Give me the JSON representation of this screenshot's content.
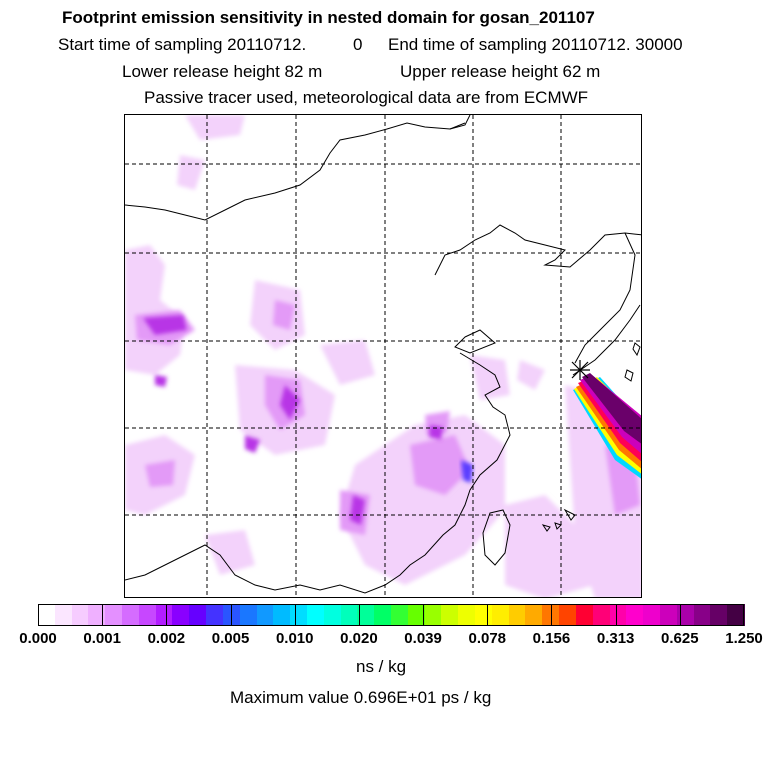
{
  "header": {
    "title": "Footprint emission sensitivity in nested domain for gosan_201107",
    "line2_start": "Start time of sampling 20110712.",
    "line2_start_val": "0",
    "line2_end": "End time of sampling 20110712. 30000",
    "line3_lower": "Lower release height   82 m",
    "line3_upper": "Upper release height   62 m",
    "line4": "Passive tracer used, meteorological data are from ECMWF"
  },
  "map": {
    "gridlines": "dashed",
    "release_marker": "star-icon"
  },
  "colorbar": {
    "labels": [
      "0.000",
      "0.001",
      "0.002",
      "0.005",
      "0.010",
      "0.020",
      "0.039",
      "0.078",
      "0.156",
      "0.313",
      "0.625",
      "1.250"
    ],
    "colors": [
      "#ffffff",
      "#fbe6ff",
      "#f6ccff",
      "#efb0ff",
      "#e490ff",
      "#d56cff",
      "#c747ff",
      "#b21dff",
      "#8a00ff",
      "#6600ff",
      "#4433ff",
      "#2a55ff",
      "#1a77ff",
      "#1199ff",
      "#00bbff",
      "#00ddff",
      "#00ffff",
      "#00ffe0",
      "#00ffbb",
      "#00ff99",
      "#00ff66",
      "#33ff33",
      "#66ff00",
      "#99ff00",
      "#ccff00",
      "#eeff00",
      "#ffff00",
      "#ffee00",
      "#ffcc00",
      "#ffaa00",
      "#ff7700",
      "#ff4400",
      "#ff0033",
      "#ff0077",
      "#ff00aa",
      "#ff00cc",
      "#ee00cc",
      "#cc00bb",
      "#aa00aa",
      "#880088",
      "#660066",
      "#440044"
    ],
    "unit": "ns / kg",
    "maximum_text": "Maximum value  0.696E+01 ps / kg"
  }
}
